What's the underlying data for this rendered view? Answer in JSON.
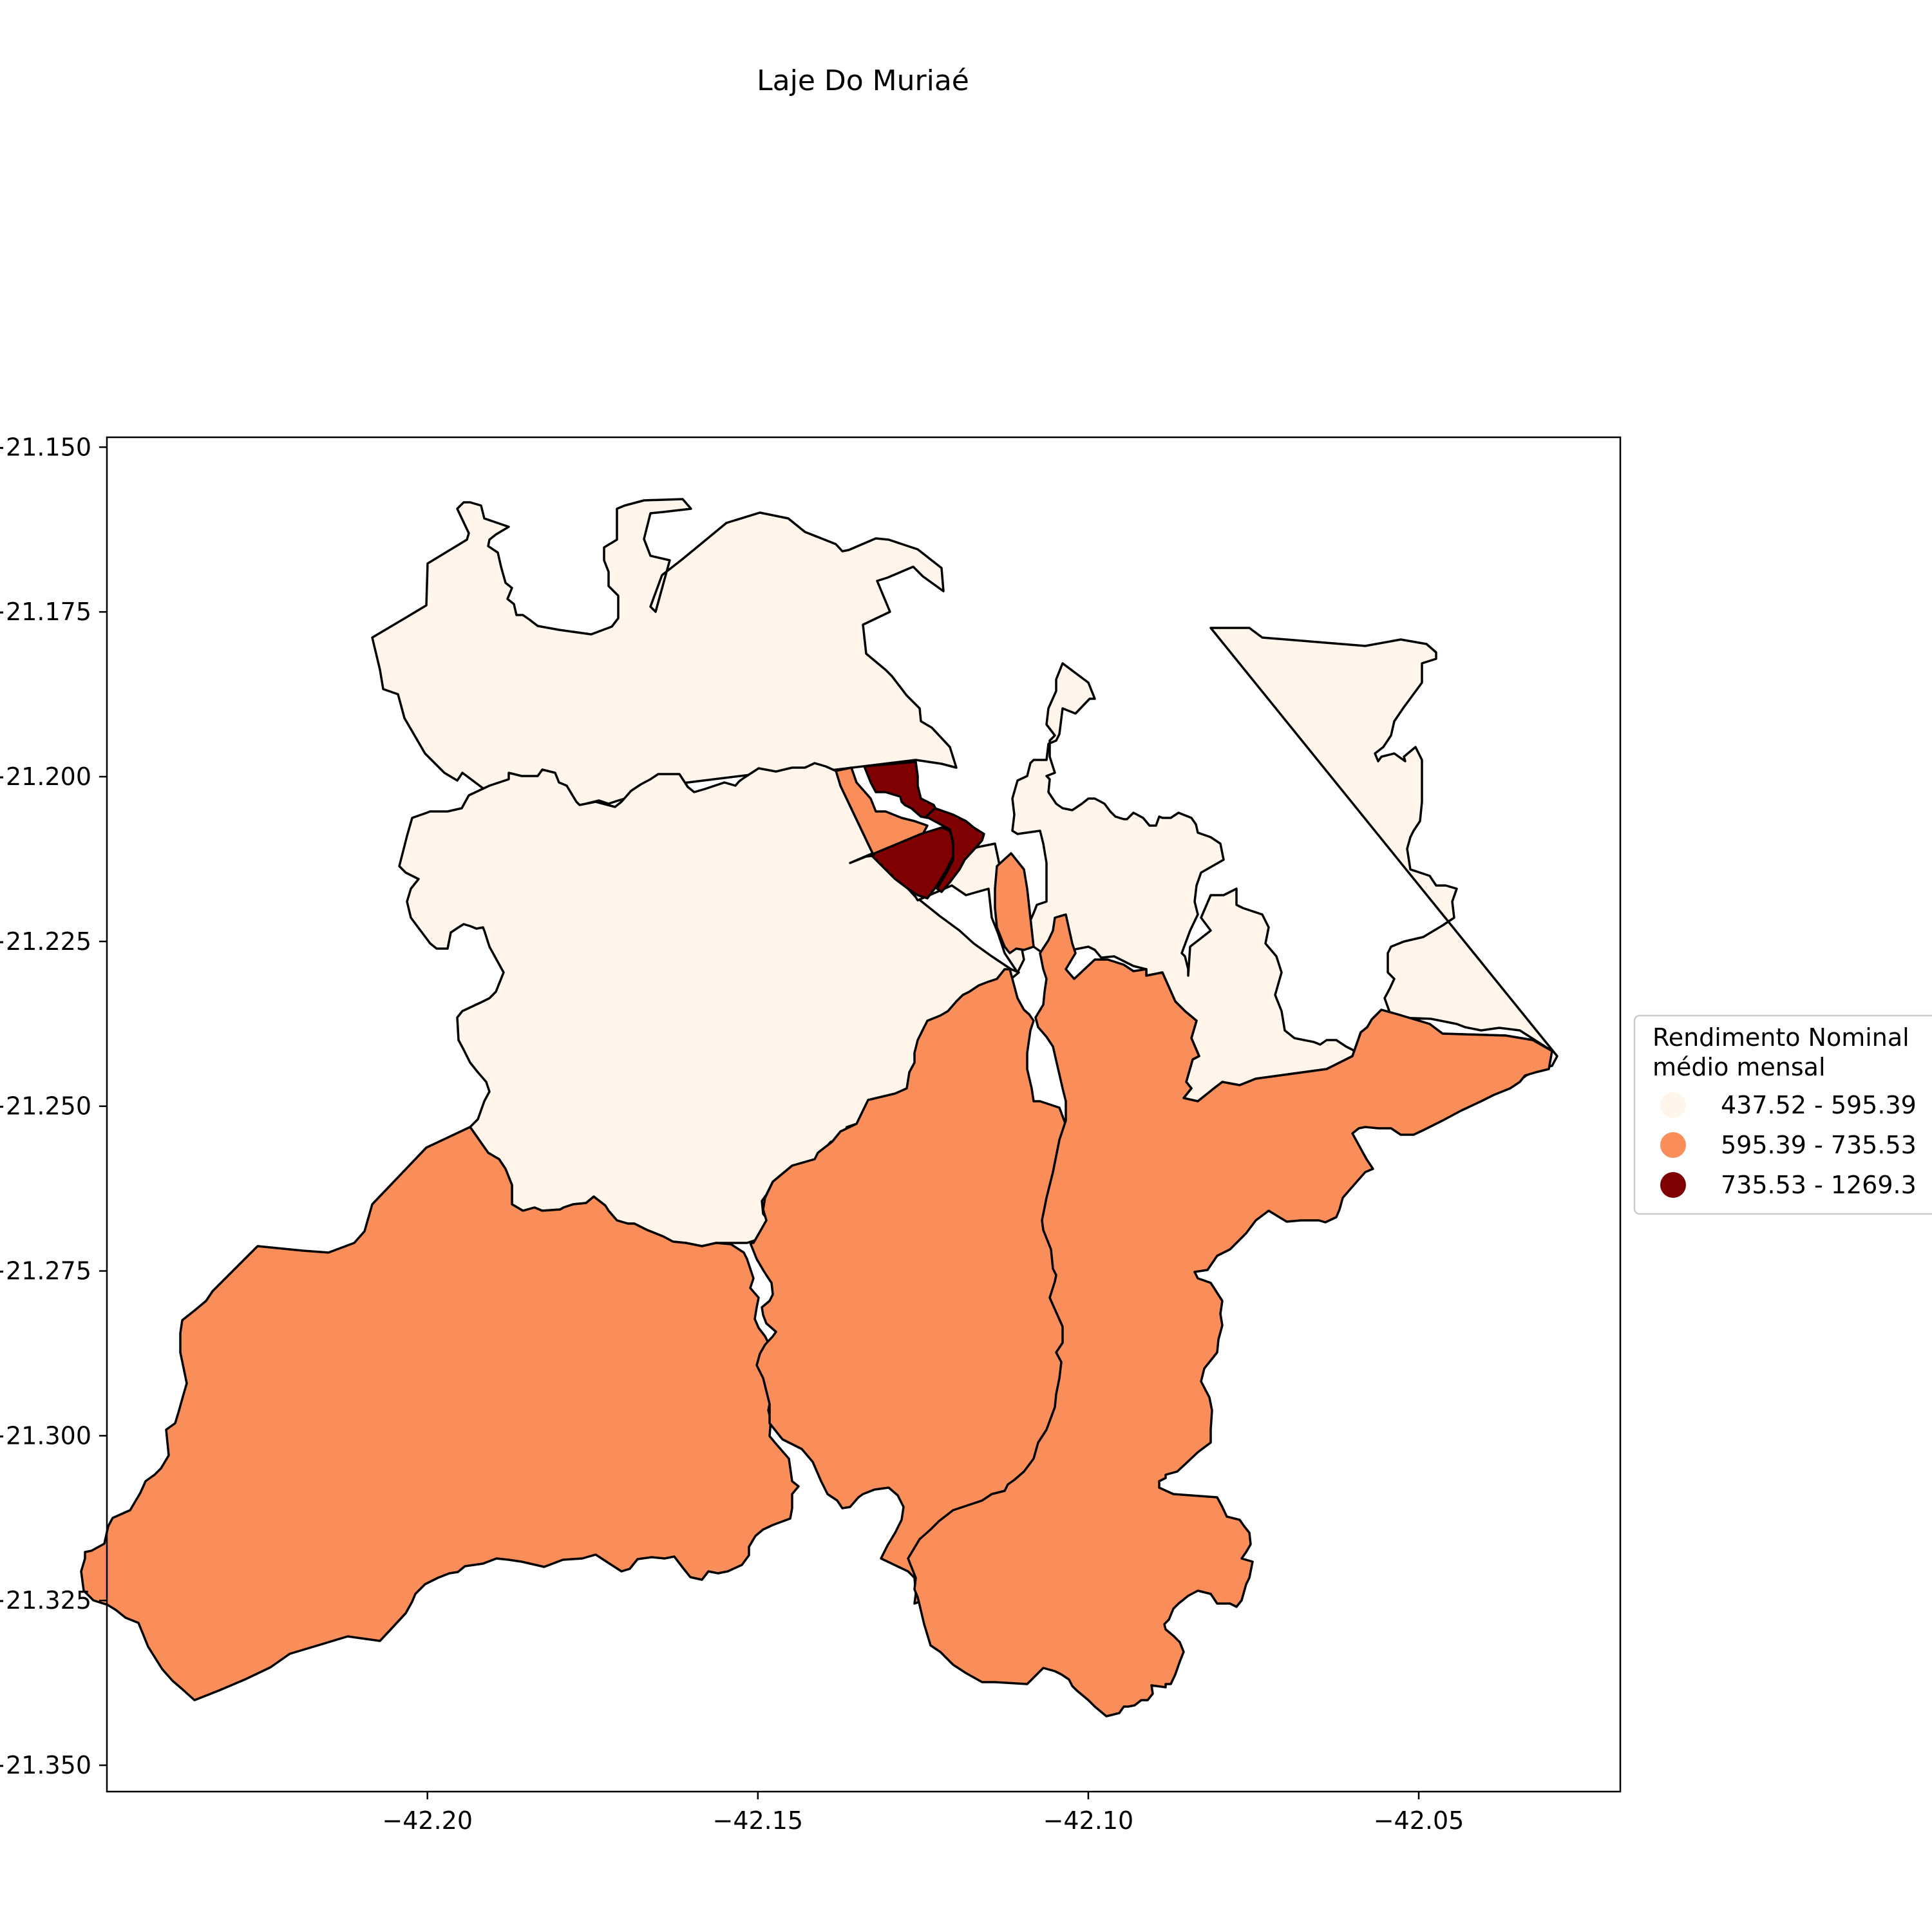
{
  "title": "Laje Do Muriaé",
  "colors": {
    "class_1": "#fff5eb",
    "class_2": "#f98e5b",
    "class_3": "#7f0000"
  },
  "chart_data": {
    "type": "choropleth",
    "title": "Laje Do Muriaé",
    "x_ticks": [
      "−42.20",
      "−42.15",
      "−42.10",
      "−42.05"
    ],
    "x_tick_values": [
      -42.2,
      -42.15,
      -42.1,
      -42.05
    ],
    "y_ticks": [
      "−21.150",
      "−21.175",
      "−21.200",
      "−21.225",
      "−21.250",
      "−21.275",
      "−21.300",
      "−21.325",
      "−21.350"
    ],
    "y_tick_values": [
      -21.15,
      -21.175,
      -21.2,
      -21.225,
      -21.25,
      -21.275,
      -21.3,
      -21.325,
      -21.35
    ],
    "xlim": [
      -42.2485,
      -42.0195
    ],
    "ylim": [
      -21.354,
      -21.1485
    ],
    "legend": {
      "title_line1": "Rendimento Nominal",
      "title_line2": "médio mensal",
      "placement": "center-right",
      "entries": [
        {
          "label": "437.52 - 595.39",
          "class": "class_1"
        },
        {
          "label": "595.39 - 735.53",
          "class": "class_2"
        },
        {
          "label": "735.53 - 1269.3",
          "class": "class_3"
        }
      ]
    },
    "regions": [
      {
        "name": "north",
        "class": "class_1"
      },
      {
        "name": "northeast",
        "class": "class_1"
      },
      {
        "name": "west",
        "class": "class_1"
      },
      {
        "name": "center-strip",
        "class": "class_1"
      },
      {
        "name": "southwest",
        "class": "class_2"
      },
      {
        "name": "south-center",
        "class": "class_2"
      },
      {
        "name": "southeast",
        "class": "class_2"
      },
      {
        "name": "town-medium-a",
        "class": "class_2"
      },
      {
        "name": "town-medium-b",
        "class": "class_2"
      },
      {
        "name": "town-high-a",
        "class": "class_3"
      },
      {
        "name": "town-high-b",
        "class": "class_3"
      },
      {
        "name": "town-high-c",
        "class": "class_3"
      }
    ]
  }
}
